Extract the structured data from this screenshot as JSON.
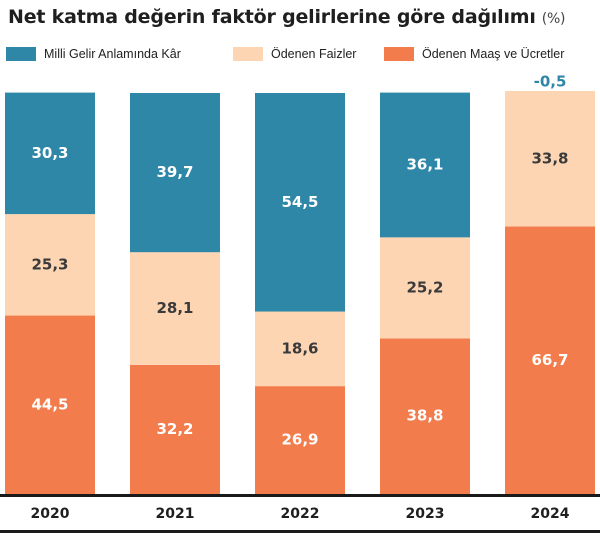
{
  "title": "Net katma değerin faktör gelirlerine göre dağılımı",
  "unit": "(%)",
  "colors": {
    "kar": "#2e87a6",
    "faiz": "#fdd5b3",
    "maas": "#f37c4c",
    "text_on_dark": "#ffffff",
    "text_on_light": "#3a3a3a",
    "negative_text": "#2e87a6",
    "axis": "#1a1a1a"
  },
  "chart_data": {
    "type": "bar",
    "stacked": true,
    "categories": [
      "2020",
      "2021",
      "2022",
      "2023",
      "2024"
    ],
    "series": [
      {
        "name": "Ödenen Maaş ve Ücretler",
        "key": "maas",
        "values": [
          44.5,
          32.2,
          26.9,
          38.8,
          66.7
        ]
      },
      {
        "name": "Ödenen Faizler",
        "key": "faiz",
        "values": [
          25.3,
          28.1,
          18.6,
          25.2,
          33.8
        ]
      },
      {
        "name": "Milli Gelir Anlamında Kâr",
        "key": "kar",
        "values": [
          30.3,
          39.7,
          54.5,
          36.1,
          -0.5
        ]
      }
    ],
    "labels": {
      "maas": [
        "44,5",
        "32,2",
        "26,9",
        "38,8",
        "66,7"
      ],
      "faiz": [
        "25,3",
        "28,1",
        "18,6",
        "25,2",
        "33,8"
      ],
      "kar": [
        "30,3",
        "39,7",
        "54,5",
        "36,1",
        "-0,5"
      ]
    },
    "legend": [
      {
        "label": "Milli Gelir Anlamında Kâr",
        "key": "kar"
      },
      {
        "label": "Ödenen Faizler",
        "key": "faiz"
      },
      {
        "label": "Ödenen Maaş ve Ücretler",
        "key": "maas"
      }
    ],
    "legend_position": "top",
    "ylim": [
      0,
      100
    ],
    "grid": false
  }
}
